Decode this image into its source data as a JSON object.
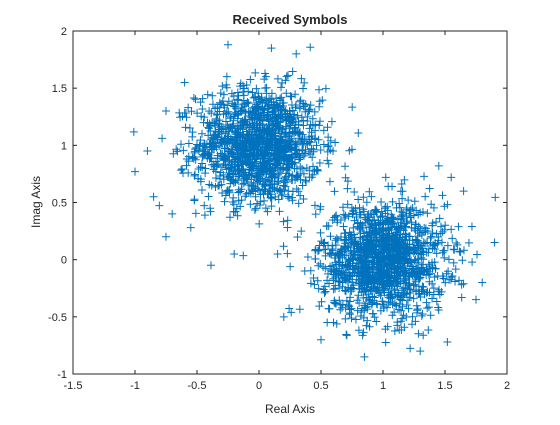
{
  "chart_data": {
    "type": "scatter",
    "title": "Received Symbols",
    "xlabel": "Real Axis",
    "ylabel": "Imag Axis",
    "xlim": [
      -1.5,
      2
    ],
    "ylim": [
      -1,
      2
    ],
    "xticks": [
      "-1.5",
      "-1",
      "-0.5",
      "0",
      "0.5",
      "1",
      "1.5",
      "2"
    ],
    "yticks": [
      "-1",
      "-0.5",
      "0",
      "0.5",
      "1",
      "1.5",
      "2"
    ],
    "grid": false,
    "legend": "none",
    "marker": "plus",
    "color": "#0072BD",
    "clusters": [
      {
        "center": [
          0,
          1
        ],
        "spread": 0.25,
        "count": 1400
      },
      {
        "center": [
          1,
          0
        ],
        "spread": 0.25,
        "count": 1400
      }
    ],
    "outliers": [
      [
        -1.0,
        0.77
      ],
      [
        -0.9,
        0.95
      ],
      [
        -0.85,
        0.55
      ],
      [
        -0.75,
        1.3
      ],
      [
        -0.7,
        0.4
      ],
      [
        -0.6,
        1.55
      ],
      [
        -0.55,
        0.28
      ],
      [
        -0.25,
        1.88
      ],
      [
        0.1,
        1.85
      ],
      [
        -0.2,
        0.05
      ],
      [
        0.3,
        1.8
      ],
      [
        1.55,
        0.72
      ],
      [
        1.9,
        0.15
      ],
      [
        1.75,
        -0.35
      ],
      [
        1.8,
        -0.2
      ],
      [
        0.5,
        -0.7
      ],
      [
        0.85,
        -0.85
      ],
      [
        1.3,
        -0.8
      ],
      [
        0.2,
        -0.5
      ],
      [
        0.15,
        0.05
      ],
      [
        1.45,
        0.82
      ],
      [
        -0.75,
        0.2
      ],
      [
        0.55,
        -0.55
      ],
      [
        1.65,
        0.6
      ]
    ]
  }
}
